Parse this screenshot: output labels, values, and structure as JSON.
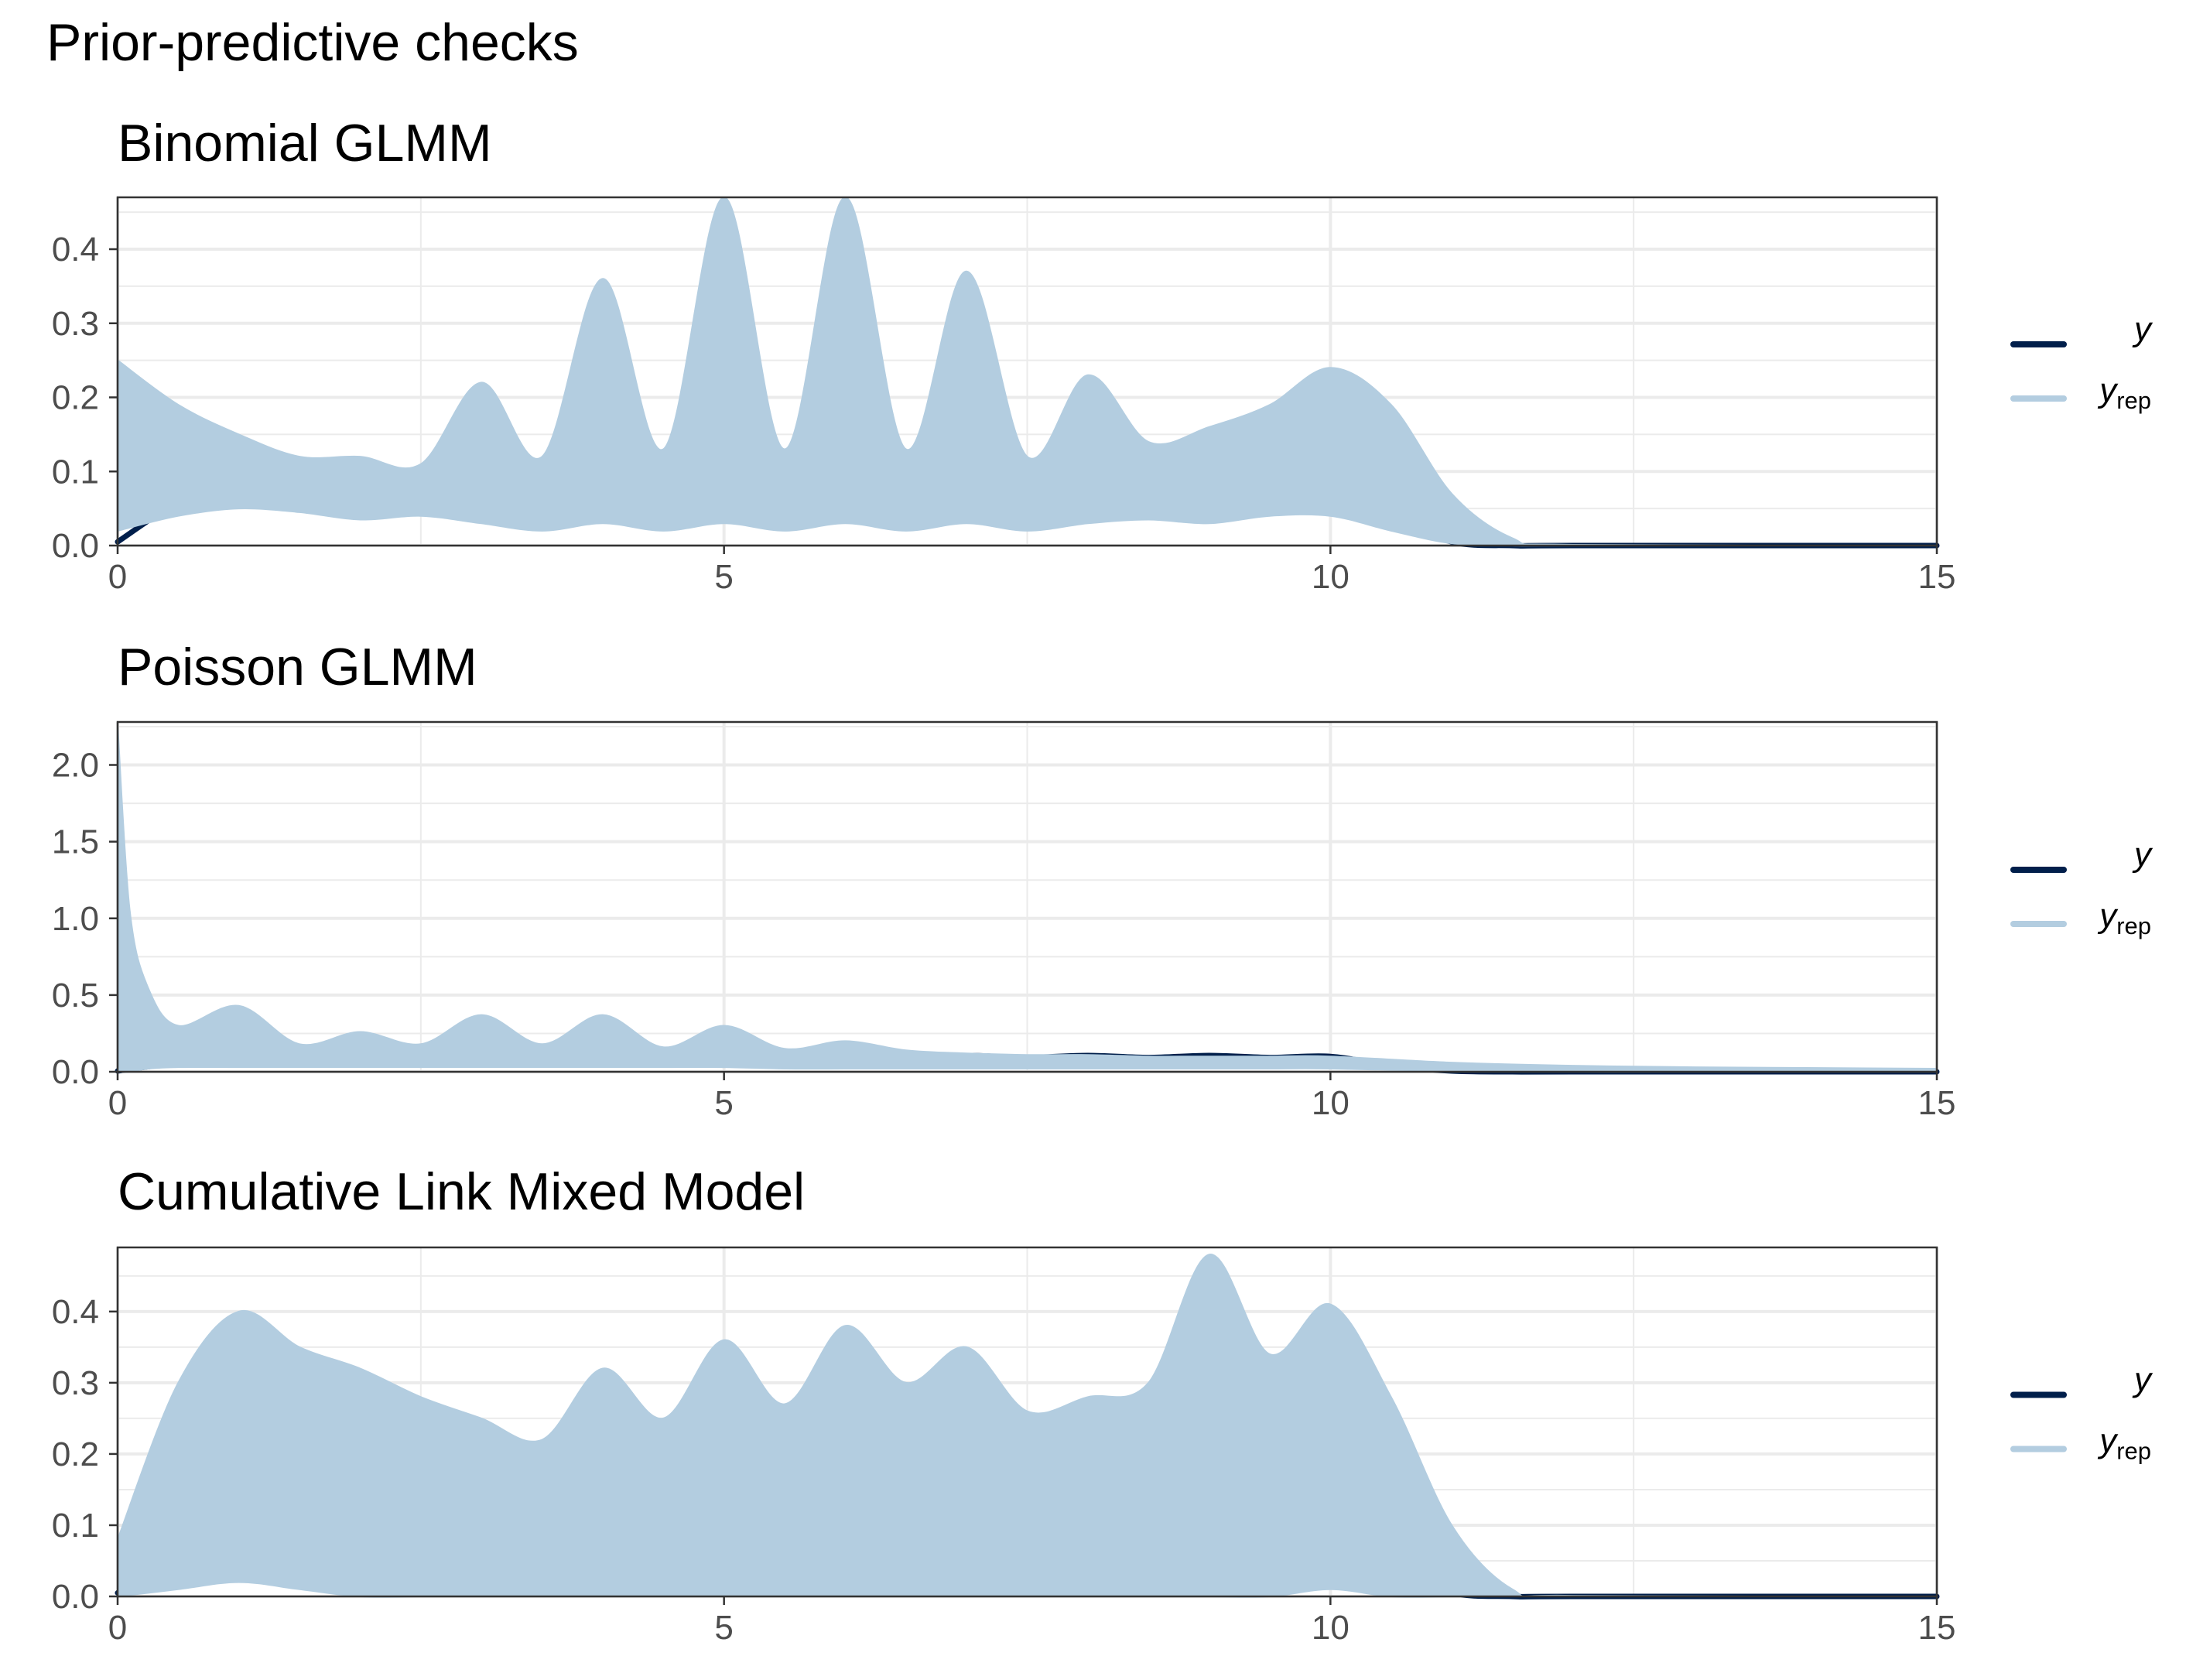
{
  "figure": {
    "title": "Prior-predictive checks"
  },
  "colors": {
    "y": "#011f4b",
    "yrep": "#b3cde0",
    "grid": "#ebebeb",
    "panel_border": "#333333",
    "tick_text": "#4d4d4d"
  },
  "chart_data": [
    {
      "type": "line",
      "title": "Binomial GLMM",
      "xlabel": "",
      "ylabel": "",
      "xlim": [
        0,
        15
      ],
      "ylim": [
        0,
        0.47
      ],
      "x_ticks": [
        0,
        5,
        10,
        15
      ],
      "y_ticks": [
        0.0,
        0.1,
        0.2,
        0.3,
        0.4
      ],
      "x_tick_labels": [
        "0",
        "5",
        "10",
        "15"
      ],
      "y_tick_labels": [
        "0.0",
        "0.1",
        "0.2",
        "0.3",
        "0.4"
      ],
      "grid": true,
      "legend": {
        "position": "right",
        "entries": [
          {
            "key": "y",
            "label": "y"
          },
          {
            "key": "yrep",
            "label": "y",
            "subscript": "rep"
          }
        ]
      },
      "series": [
        {
          "name": "y",
          "x": [
            0,
            0.5,
            1,
            1.5,
            2,
            2.5,
            3,
            3.5,
            4,
            4.5,
            5,
            5.5,
            6,
            6.5,
            7,
            7.5,
            8,
            8.5,
            9,
            9.5,
            10,
            10.5,
            11,
            11.5,
            12,
            15
          ],
          "values": [
            0.005,
            0.06,
            0.102,
            0.093,
            0.105,
            0.093,
            0.106,
            0.093,
            0.106,
            0.093,
            0.106,
            0.093,
            0.106,
            0.093,
            0.106,
            0.093,
            0.106,
            0.093,
            0.106,
            0.093,
            0.1,
            0.04,
            0.005,
            0.0,
            0.0,
            0.0
          ]
        },
        {
          "name": "y_rep",
          "kind": "envelope",
          "x": [
            0,
            0.5,
            1,
            1.5,
            2,
            2.5,
            3,
            3.5,
            4,
            4.5,
            5,
            5.5,
            6,
            6.5,
            7,
            7.5,
            8,
            8.5,
            9,
            9.5,
            10,
            10.5,
            11,
            11.5,
            12,
            15
          ],
          "lower": [
            0.02,
            0.04,
            0.05,
            0.045,
            0.035,
            0.04,
            0.03,
            0.02,
            0.03,
            0.02,
            0.03,
            0.02,
            0.03,
            0.02,
            0.03,
            0.02,
            0.03,
            0.035,
            0.03,
            0.04,
            0.04,
            0.02,
            0.003,
            0.0,
            0.0,
            0.0
          ],
          "upper": [
            0.25,
            0.19,
            0.15,
            0.12,
            0.12,
            0.11,
            0.22,
            0.12,
            0.36,
            0.13,
            0.47,
            0.13,
            0.47,
            0.13,
            0.37,
            0.12,
            0.23,
            0.14,
            0.16,
            0.19,
            0.24,
            0.19,
            0.07,
            0.01,
            0.001,
            0.0
          ]
        }
      ]
    },
    {
      "type": "line",
      "title": "Poisson GLMM",
      "xlabel": "",
      "ylabel": "",
      "xlim": [
        0,
        15
      ],
      "ylim": [
        0,
        2.28
      ],
      "x_ticks": [
        0,
        5,
        10,
        15
      ],
      "y_ticks": [
        0.0,
        0.5,
        1.0,
        1.5,
        2.0
      ],
      "x_tick_labels": [
        "0",
        "5",
        "10",
        "15"
      ],
      "y_tick_labels": [
        "0.0",
        "0.5",
        "1.0",
        "1.5",
        "2.0"
      ],
      "grid": true,
      "legend": {
        "position": "right",
        "entries": [
          {
            "key": "y",
            "label": "y"
          },
          {
            "key": "yrep",
            "label": "y",
            "subscript": "rep"
          }
        ]
      },
      "series": [
        {
          "name": "y",
          "x": [
            0,
            0.5,
            1,
            1.5,
            2,
            2.5,
            3,
            3.5,
            4,
            4.5,
            5,
            5.5,
            6,
            6.5,
            7,
            7.5,
            8,
            8.5,
            9,
            9.5,
            10,
            10.5,
            11,
            11.5,
            12,
            15
          ],
          "values": [
            0.005,
            0.06,
            0.102,
            0.093,
            0.105,
            0.093,
            0.106,
            0.093,
            0.106,
            0.093,
            0.106,
            0.093,
            0.106,
            0.093,
            0.106,
            0.093,
            0.106,
            0.093,
            0.106,
            0.093,
            0.1,
            0.04,
            0.005,
            0.0,
            0.0,
            0.0
          ]
        },
        {
          "name": "y_rep",
          "kind": "envelope",
          "x": [
            0,
            0.1,
            0.25,
            0.5,
            1,
            1.5,
            2,
            2.5,
            3,
            3.5,
            4,
            4.5,
            5,
            5.5,
            6,
            6.5,
            7,
            7.5,
            8,
            8.5,
            9,
            9.5,
            10,
            11,
            12,
            13,
            15
          ],
          "lower": [
            0.0,
            0.0,
            0.02,
            0.03,
            0.03,
            0.03,
            0.03,
            0.03,
            0.03,
            0.03,
            0.03,
            0.03,
            0.03,
            0.02,
            0.02,
            0.02,
            0.02,
            0.02,
            0.02,
            0.02,
            0.02,
            0.02,
            0.02,
            0.005,
            0.0,
            0.0,
            0.0
          ],
          "upper": [
            2.26,
            1.05,
            0.55,
            0.3,
            0.43,
            0.18,
            0.26,
            0.18,
            0.37,
            0.18,
            0.37,
            0.16,
            0.3,
            0.15,
            0.2,
            0.14,
            0.12,
            0.11,
            0.11,
            0.1,
            0.1,
            0.1,
            0.1,
            0.06,
            0.04,
            0.03,
            0.02
          ]
        }
      ]
    },
    {
      "type": "line",
      "title": "Cumulative Link Mixed Model",
      "xlabel": "",
      "ylabel": "",
      "xlim": [
        0,
        15
      ],
      "ylim": [
        0,
        0.49
      ],
      "x_ticks": [
        0,
        5,
        10,
        15
      ],
      "y_ticks": [
        0.0,
        0.1,
        0.2,
        0.3,
        0.4
      ],
      "x_tick_labels": [
        "0",
        "5",
        "10",
        "15"
      ],
      "y_tick_labels": [
        "0.0",
        "0.1",
        "0.2",
        "0.3",
        "0.4"
      ],
      "grid": true,
      "legend": {
        "position": "right",
        "entries": [
          {
            "key": "y",
            "label": "y"
          },
          {
            "key": "yrep",
            "label": "y",
            "subscript": "rep"
          }
        ]
      },
      "series": [
        {
          "name": "y",
          "x": [
            0,
            0.5,
            1,
            1.5,
            2,
            2.5,
            3,
            3.5,
            4,
            4.5,
            5,
            5.5,
            6,
            6.5,
            7,
            7.5,
            8,
            8.5,
            9,
            9.5,
            10,
            10.5,
            11,
            11.5,
            12,
            15
          ],
          "values": [
            0.005,
            0.06,
            0.102,
            0.093,
            0.105,
            0.093,
            0.106,
            0.093,
            0.106,
            0.093,
            0.106,
            0.093,
            0.106,
            0.093,
            0.106,
            0.093,
            0.106,
            0.093,
            0.106,
            0.093,
            0.1,
            0.04,
            0.005,
            0.0,
            0.0,
            0.0
          ]
        },
        {
          "name": "y_rep",
          "kind": "envelope",
          "x": [
            0,
            0.5,
            1,
            1.5,
            2,
            2.5,
            3,
            3.5,
            4,
            4.5,
            5,
            5.5,
            6,
            6.5,
            7,
            7.5,
            8,
            8.5,
            9,
            9.5,
            10,
            10.5,
            11,
            11.5,
            12,
            15
          ],
          "lower": [
            0.0,
            0.01,
            0.02,
            0.01,
            0.0,
            0.0,
            0.0,
            0.0,
            0.0,
            0.0,
            0.0,
            0.0,
            0.0,
            0.0,
            0.0,
            0.0,
            0.0,
            0.0,
            0.0,
            0.0,
            0.01,
            0.0,
            0.0,
            0.0,
            0.0,
            0.0
          ],
          "upper": [
            0.08,
            0.3,
            0.4,
            0.35,
            0.32,
            0.28,
            0.25,
            0.22,
            0.32,
            0.25,
            0.36,
            0.27,
            0.38,
            0.3,
            0.35,
            0.26,
            0.28,
            0.3,
            0.48,
            0.34,
            0.41,
            0.28,
            0.1,
            0.01,
            0.001,
            0.0
          ]
        }
      ]
    }
  ]
}
